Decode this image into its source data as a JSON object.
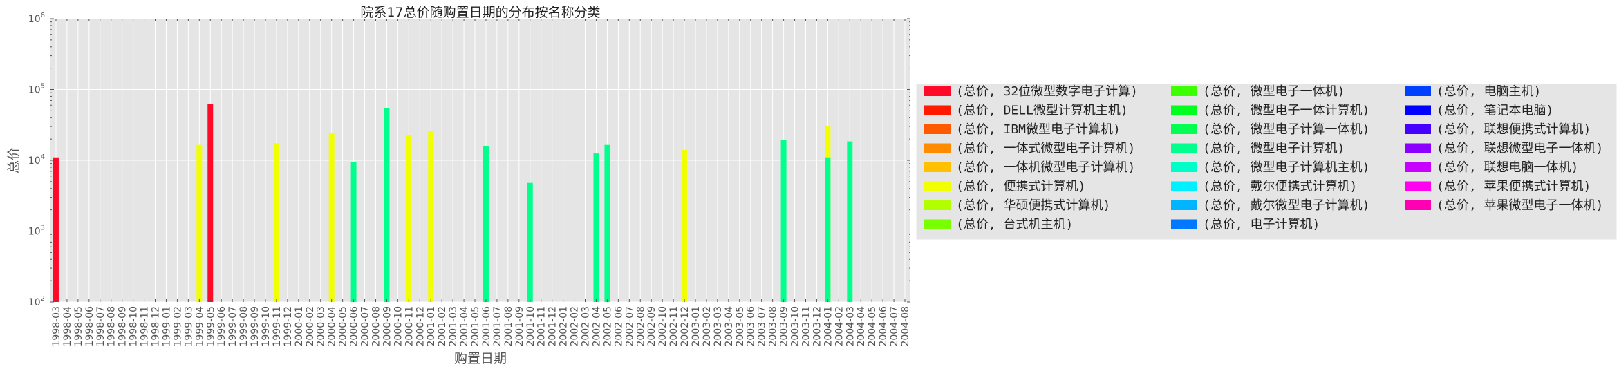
{
  "chart_data": {
    "type": "bar",
    "title": "院系17总价随购置日期的分布按名称分类",
    "xlabel": "购置日期",
    "ylabel": "总价",
    "yscale": "log",
    "ylim": [
      100,
      1000000
    ],
    "yticks": [
      {
        "value": 100,
        "base": "10",
        "exp": "2"
      },
      {
        "value": 1000,
        "base": "10",
        "exp": "3"
      },
      {
        "value": 10000,
        "base": "10",
        "exp": "4"
      },
      {
        "value": 100000,
        "base": "10",
        "exp": "5"
      },
      {
        "value": 1000000,
        "base": "10",
        "exp": "6"
      }
    ],
    "grid": true,
    "legend_position": "right",
    "categories": [
      "1998-03",
      "1998-04",
      "1998-05",
      "1998-06",
      "1998-07",
      "1998-08",
      "1998-09",
      "1998-10",
      "1998-11",
      "1998-12",
      "1999-01",
      "1999-02",
      "1999-03",
      "1999-04",
      "1999-05",
      "1999-06",
      "1999-07",
      "1999-08",
      "1999-09",
      "1999-10",
      "1999-11",
      "1999-12",
      "2000-01",
      "2000-02",
      "2000-03",
      "2000-04",
      "2000-05",
      "2000-06",
      "2000-07",
      "2000-08",
      "2000-09",
      "2000-10",
      "2000-11",
      "2000-12",
      "2001-01",
      "2001-02",
      "2001-03",
      "2001-04",
      "2001-05",
      "2001-06",
      "2001-07",
      "2001-08",
      "2001-09",
      "2001-10",
      "2001-11",
      "2001-12",
      "2002-01",
      "2002-02",
      "2002-03",
      "2002-04",
      "2002-05",
      "2002-06",
      "2002-07",
      "2002-08",
      "2002-09",
      "2002-10",
      "2002-11",
      "2002-12",
      "2003-01",
      "2003-02",
      "2003-03",
      "2003-04",
      "2003-05",
      "2003-06",
      "2003-07",
      "2003-08",
      "2003-09",
      "2003-10",
      "2003-11",
      "2003-12",
      "2004-01",
      "2004-02",
      "2004-03",
      "2004-04",
      "2004-05",
      "2004-06",
      "2004-07",
      "2004-08"
    ],
    "series": [
      {
        "name": "(总价, 32位微型数字电子计算)",
        "color": "#ff0a28"
      },
      {
        "name": "(总价, DELL微型计算机主机)",
        "color": "#ff1a00"
      },
      {
        "name": "(总价, IBM微型电子计算机)",
        "color": "#ff5a00"
      },
      {
        "name": "(总价, 一体式微型电子计算机)",
        "color": "#ff8c00"
      },
      {
        "name": "(总价, 一体机微型电子计算机)",
        "color": "#ffc000"
      },
      {
        "name": "(总价, 便携式计算机)",
        "color": "#f2ff00"
      },
      {
        "name": "(总价, 华硕便携式计算机)",
        "color": "#b2ff00"
      },
      {
        "name": "(总价, 台式机主机)",
        "color": "#78ff00"
      },
      {
        "name": "(总价, 微型电子一体机)",
        "color": "#3cff00"
      },
      {
        "name": "(总价, 微型电子一体计算机)",
        "color": "#00ff1e"
      },
      {
        "name": "(总价, 微型电子计算一体机)",
        "color": "#00ff50"
      },
      {
        "name": "(总价, 微型电子计算机)",
        "color": "#00ff8c"
      },
      {
        "name": "(总价, 微型电子计算机主机)",
        "color": "#00ffc8"
      },
      {
        "name": "(总价, 戴尔便携式计算机)",
        "color": "#00f0ff"
      },
      {
        "name": "(总价, 戴尔微型电子计算机)",
        "color": "#00b4ff"
      },
      {
        "name": "(总价, 电子计算机)",
        "color": "#0078ff"
      },
      {
        "name": "(总价, 电脑主机)",
        "color": "#0040ff"
      },
      {
        "name": "(总价, 笔记本电脑)",
        "color": "#0000ff"
      },
      {
        "name": "(总价, 联想便携式计算机)",
        "color": "#4600ff"
      },
      {
        "name": "(总价, 联想微型电子一体机)",
        "color": "#8c00ff"
      },
      {
        "name": "(总价, 联想电脑一体机)",
        "color": "#c800ff"
      },
      {
        "name": "(总价, 苹果便携式计算机)",
        "color": "#ff00f0"
      },
      {
        "name": "(总价, 苹果微型电子一体机)",
        "color": "#ff00b4"
      }
    ],
    "bars": [
      {
        "x": "1998-03",
        "series": 0,
        "value": 11000
      },
      {
        "x": "1999-04",
        "series": 5,
        "value": 16500
      },
      {
        "x": "1999-05",
        "series": 0,
        "value": 63000
      },
      {
        "x": "1999-11",
        "series": 5,
        "value": 17500
      },
      {
        "x": "2000-04",
        "series": 5,
        "value": 24000
      },
      {
        "x": "2000-06",
        "series": 11,
        "value": 9500
      },
      {
        "x": "2000-09",
        "series": 11,
        "value": 55000
      },
      {
        "x": "2000-11",
        "series": 5,
        "value": 23000
      },
      {
        "x": "2001-01",
        "series": 5,
        "value": 26000
      },
      {
        "x": "2001-06",
        "series": 11,
        "value": 16000
      },
      {
        "x": "2001-10",
        "series": 11,
        "value": 4800
      },
      {
        "x": "2002-04",
        "series": 11,
        "value": 12500
      },
      {
        "x": "2002-05",
        "series": 11,
        "value": 16500
      },
      {
        "x": "2002-12",
        "series": 5,
        "value": 14000
      },
      {
        "x": "2003-09",
        "series": 11,
        "value": 19500
      },
      {
        "x": "2004-01",
        "series": 5,
        "value": 30000
      },
      {
        "x": "2004-01",
        "series": 11,
        "value": 11000
      },
      {
        "x": "2004-03",
        "series": 11,
        "value": 18500
      }
    ]
  }
}
